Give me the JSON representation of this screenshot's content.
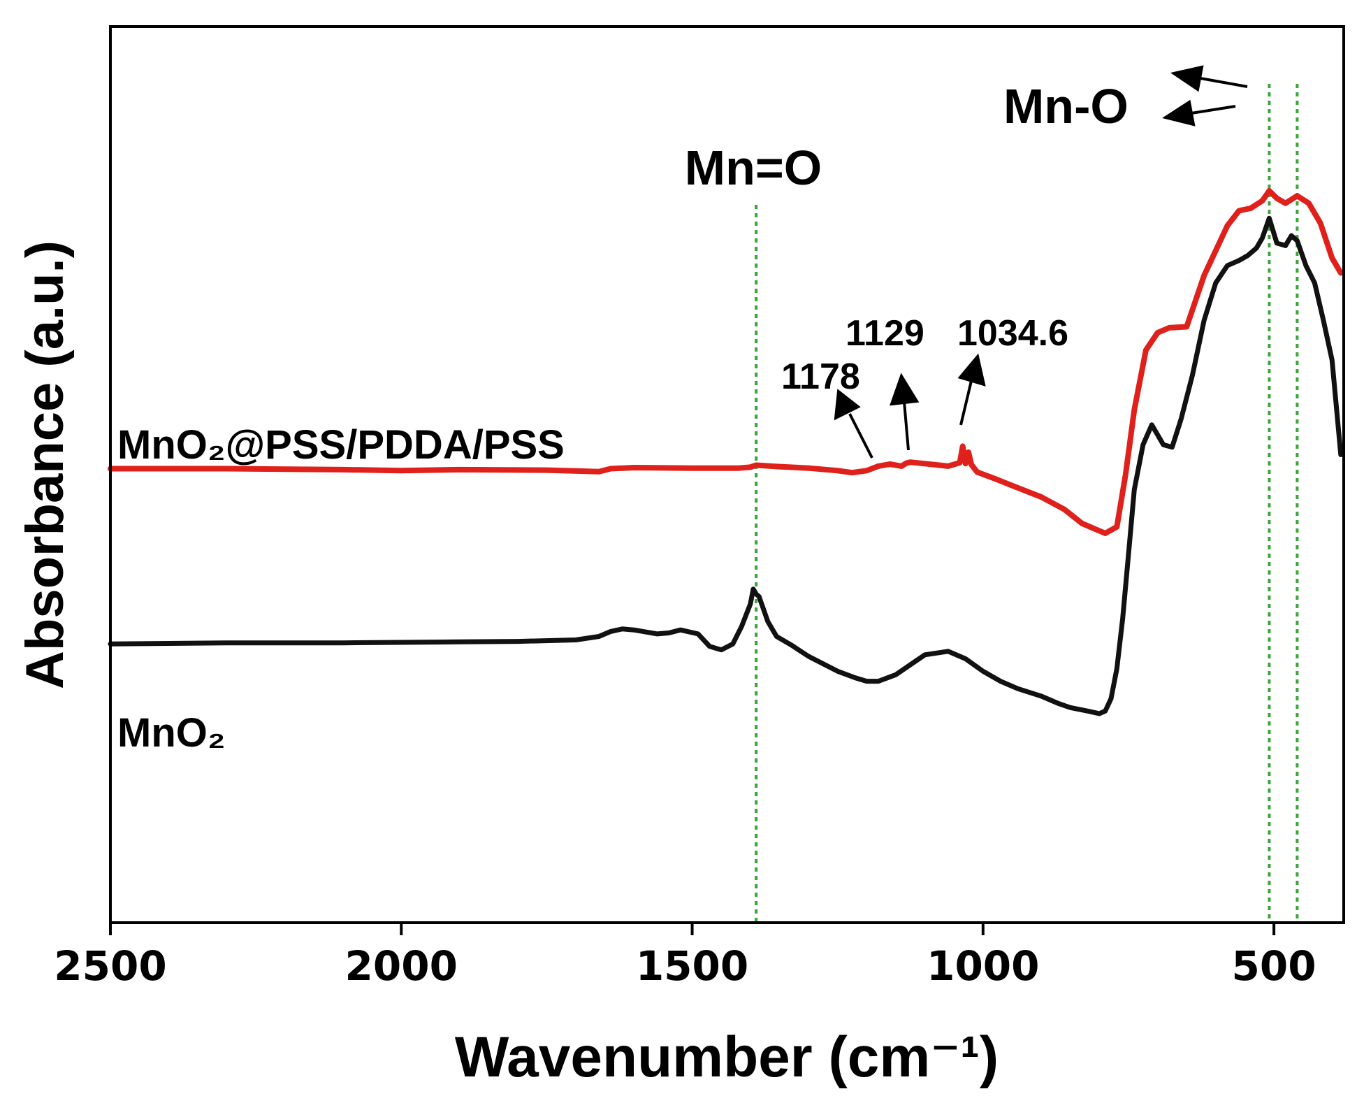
{
  "chart_data": {
    "type": "line",
    "xlabel": "Wavenumber (cm⁻¹)",
    "ylabel": "Absorbance (a.u.)",
    "xlim": [
      2500,
      380
    ],
    "x_reversed": true,
    "x_ticks": [
      "2500",
      "2000",
      "1500",
      "1000",
      "500"
    ],
    "y_ticks": false,
    "grid": false,
    "reference_lines_x": [
      1390,
      508,
      460
    ],
    "reference_line_color": "#3aa63a",
    "series": [
      {
        "name": "MnO₂@PSS/PDDA/PSS",
        "color": "#e0201b",
        "x": [
          2500,
          2300,
          2100,
          2000,
          1900,
          1750,
          1660,
          1640,
          1600,
          1500,
          1420,
          1400,
          1390,
          1350,
          1300,
          1250,
          1225,
          1200,
          1180,
          1160,
          1140,
          1132,
          1125,
          1100,
          1060,
          1040,
          1035,
          1030,
          1025,
          1020,
          1010,
          980,
          950,
          900,
          860,
          830,
          810,
          790,
          770,
          755,
          740,
          720,
          700,
          680,
          650,
          620,
          580,
          560,
          540,
          520,
          508,
          495,
          480,
          460,
          440,
          420,
          400,
          385
        ],
        "y": [
          5.62,
          5.62,
          5.6,
          5.58,
          5.6,
          5.59,
          5.56,
          5.62,
          5.64,
          5.63,
          5.63,
          5.65,
          5.69,
          5.66,
          5.63,
          5.58,
          5.54,
          5.58,
          5.67,
          5.71,
          5.67,
          5.73,
          5.75,
          5.72,
          5.67,
          5.74,
          6.07,
          5.72,
          5.95,
          5.7,
          5.55,
          5.42,
          5.28,
          5.05,
          4.8,
          4.52,
          4.42,
          4.32,
          4.45,
          5.5,
          6.8,
          8.0,
          8.35,
          8.45,
          8.47,
          9.5,
          10.5,
          10.8,
          10.85,
          11.0,
          11.2,
          11.05,
          10.95,
          11.1,
          10.95,
          10.55,
          9.85,
          9.55
        ]
      },
      {
        "name": "MnO₂",
        "color": "#111111",
        "x": [
          2500,
          2300,
          2100,
          2000,
          1900,
          1800,
          1700,
          1660,
          1640,
          1620,
          1600,
          1560,
          1540,
          1520,
          1490,
          1470,
          1450,
          1430,
          1415,
          1400,
          1395,
          1390,
          1385,
          1370,
          1355,
          1330,
          1300,
          1250,
          1220,
          1200,
          1180,
          1150,
          1120,
          1100,
          1060,
          1030,
          1000,
          970,
          940,
          900,
          870,
          850,
          820,
          800,
          790,
          780,
          770,
          760,
          750,
          740,
          725,
          710,
          700,
          690,
          675,
          660,
          640,
          620,
          600,
          580,
          560,
          545,
          530,
          520,
          508,
          495,
          480,
          470,
          460,
          445,
          430,
          415,
          400,
          385
        ],
        "y": [
          2.1,
          2.12,
          2.12,
          2.13,
          2.14,
          2.15,
          2.18,
          2.25,
          2.35,
          2.4,
          2.38,
          2.3,
          2.32,
          2.38,
          2.3,
          2.05,
          1.98,
          2.1,
          2.45,
          2.9,
          3.2,
          3.1,
          3.05,
          2.55,
          2.25,
          2.08,
          1.85,
          1.55,
          1.42,
          1.35,
          1.35,
          1.48,
          1.72,
          1.88,
          1.95,
          1.8,
          1.55,
          1.35,
          1.2,
          1.05,
          0.9,
          0.82,
          0.75,
          0.7,
          0.75,
          1.0,
          1.6,
          2.6,
          3.9,
          5.2,
          6.1,
          6.5,
          6.3,
          6.1,
          6.05,
          6.6,
          7.5,
          8.6,
          9.35,
          9.7,
          9.8,
          9.9,
          10.05,
          10.25,
          10.65,
          10.15,
          10.1,
          10.3,
          10.2,
          9.7,
          9.35,
          8.6,
          7.8,
          5.9
        ]
      }
    ],
    "series_labels": [
      "MnO₂@PSS/PDDA/PSS",
      "MnO₂"
    ],
    "annotations": {
      "mn_double_o": "Mn=O",
      "mn_o": "Mn-O",
      "peak_1178": "1178",
      "peak_1129": "1129",
      "peak_1034": "1034.6"
    }
  }
}
